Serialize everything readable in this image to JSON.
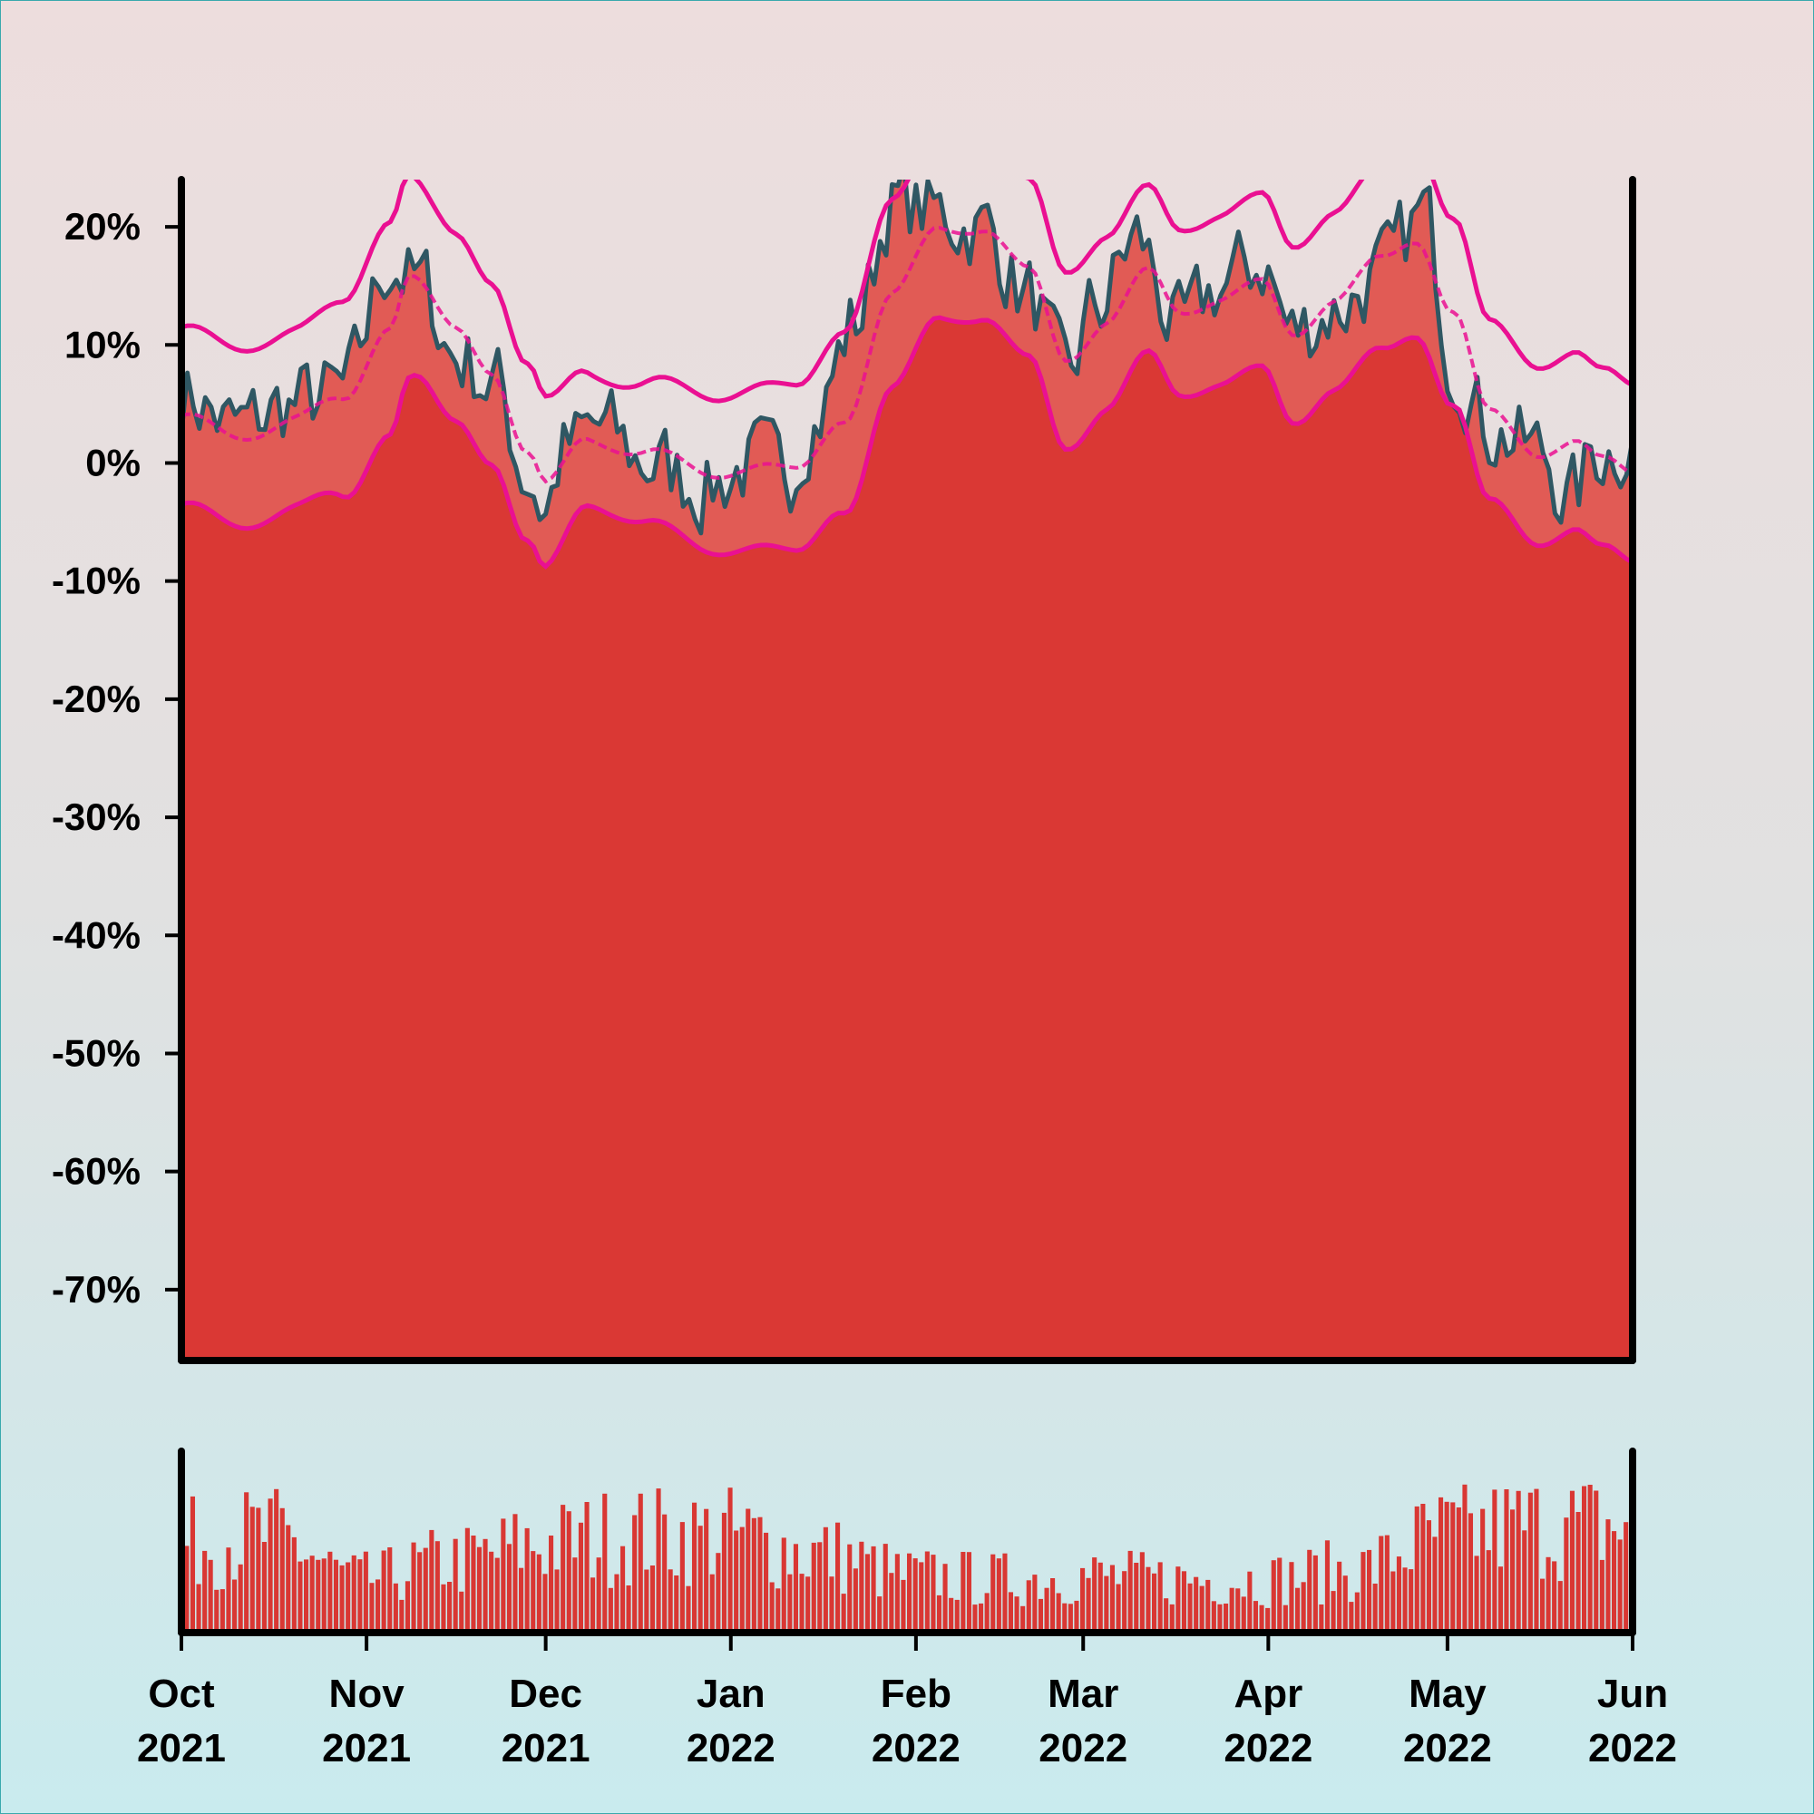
{
  "chart_data": {
    "type": "area",
    "subtype": "price-with-bollinger-bands-and-volume",
    "x_range": [
      "2021-10-01",
      "2022-06-01"
    ],
    "ylim": [
      -76,
      24
    ],
    "yticks": [
      20,
      10,
      0,
      -10,
      -20,
      -30,
      -40,
      -50,
      -60,
      -70
    ],
    "ytick_labels": [
      "20%",
      "10%",
      "0%",
      "-10%",
      "-20%",
      "-30%",
      "-40%",
      "-50%",
      "-60%",
      "-70%"
    ],
    "xticks": [
      {
        "date": "2021-10-01",
        "label": "Oct",
        "year": "2021"
      },
      {
        "date": "2021-11-01",
        "label": "Nov",
        "year": "2021"
      },
      {
        "date": "2021-12-01",
        "label": "Dec",
        "year": "2021"
      },
      {
        "date": "2022-01-01",
        "label": "Jan",
        "year": "2022"
      },
      {
        "date": "2022-02-01",
        "label": "Feb",
        "year": "2022"
      },
      {
        "date": "2022-03-01",
        "label": "Mar",
        "year": "2022"
      },
      {
        "date": "2022-04-01",
        "label": "Apr",
        "year": "2022"
      },
      {
        "date": "2022-05-01",
        "label": "May",
        "year": "2022"
      },
      {
        "date": "2022-06-01",
        "label": "Jun",
        "year": "2022"
      }
    ],
    "price_keypoints": [
      [
        "2021-10-01",
        6
      ],
      [
        "2021-10-10",
        3
      ],
      [
        "2021-10-20",
        5
      ],
      [
        "2021-10-28",
        6
      ],
      [
        "2021-11-05",
        17
      ],
      [
        "2021-11-10",
        15
      ],
      [
        "2021-11-16",
        9
      ],
      [
        "2021-11-22",
        7
      ],
      [
        "2021-11-28",
        -1
      ],
      [
        "2021-12-01",
        -4
      ],
      [
        "2021-12-04",
        1
      ],
      [
        "2021-12-10",
        3
      ],
      [
        "2021-12-18",
        0
      ],
      [
        "2021-12-28",
        -2
      ],
      [
        "2022-01-05",
        0
      ],
      [
        "2022-01-10",
        -1
      ],
      [
        "2022-01-15",
        4
      ],
      [
        "2022-01-22",
        12
      ],
      [
        "2022-01-28",
        22
      ],
      [
        "2022-02-05",
        21
      ],
      [
        "2022-02-12",
        20
      ],
      [
        "2022-02-20",
        14
      ],
      [
        "2022-02-26",
        7
      ],
      [
        "2022-03-03",
        13
      ],
      [
        "2022-03-10",
        19
      ],
      [
        "2022-03-17",
        11
      ],
      [
        "2022-03-24",
        15
      ],
      [
        "2022-03-31",
        17
      ],
      [
        "2022-04-05",
        11
      ],
      [
        "2022-04-12",
        13
      ],
      [
        "2022-04-20",
        16
      ],
      [
        "2022-04-27",
        21
      ],
      [
        "2022-05-02",
        9
      ],
      [
        "2022-05-08",
        3
      ],
      [
        "2022-05-16",
        1
      ],
      [
        "2022-05-22",
        -3
      ],
      [
        "2022-05-26",
        1
      ],
      [
        "2022-06-01",
        2
      ]
    ],
    "sma_keypoints": [
      [
        "2021-10-01",
        4
      ],
      [
        "2021-10-10",
        2
      ],
      [
        "2021-10-20",
        4
      ],
      [
        "2021-10-28",
        5
      ],
      [
        "2021-11-05",
        12
      ],
      [
        "2021-11-08",
        16
      ],
      [
        "2021-11-16",
        11
      ],
      [
        "2021-11-22",
        8
      ],
      [
        "2021-11-28",
        1
      ],
      [
        "2021-12-01",
        -2
      ],
      [
        "2021-12-08",
        2
      ],
      [
        "2021-12-18",
        1
      ],
      [
        "2021-12-28",
        -1
      ],
      [
        "2022-01-05",
        0
      ],
      [
        "2022-01-12",
        -1
      ],
      [
        "2022-01-20",
        4
      ],
      [
        "2022-01-28",
        14
      ],
      [
        "2022-02-05",
        20
      ],
      [
        "2022-02-12",
        20
      ],
      [
        "2022-02-20",
        16
      ],
      [
        "2022-02-26",
        9
      ],
      [
        "2022-03-05",
        12
      ],
      [
        "2022-03-12",
        16
      ],
      [
        "2022-03-17",
        13
      ],
      [
        "2022-03-24",
        14
      ],
      [
        "2022-03-31",
        15
      ],
      [
        "2022-04-05",
        11
      ],
      [
        "2022-04-12",
        14
      ],
      [
        "2022-04-20",
        17
      ],
      [
        "2022-04-26",
        19
      ],
      [
        "2022-05-02",
        13
      ],
      [
        "2022-05-08",
        4
      ],
      [
        "2022-05-16",
        1
      ],
      [
        "2022-05-22",
        2
      ],
      [
        "2022-05-27",
        0
      ],
      [
        "2022-06-01",
        -1
      ]
    ],
    "band_width_keypoints": [
      [
        "2021-10-01",
        7.5
      ],
      [
        "2021-10-20",
        7.5
      ],
      [
        "2021-11-05",
        9
      ],
      [
        "2021-11-12",
        8
      ],
      [
        "2021-11-28",
        7.5
      ],
      [
        "2021-12-10",
        5.5
      ],
      [
        "2021-12-28",
        6.5
      ],
      [
        "2022-01-12",
        7
      ],
      [
        "2022-01-25",
        8
      ],
      [
        "2022-02-10",
        7.5
      ],
      [
        "2022-02-25",
        7.5
      ],
      [
        "2022-03-15",
        7
      ],
      [
        "2022-04-10",
        7.5
      ],
      [
        "2022-04-28",
        8
      ],
      [
        "2022-05-12",
        7.5
      ],
      [
        "2022-06-01",
        7.5
      ]
    ],
    "volume_keypoints": [
      [
        "2021-10-01",
        0.5
      ],
      [
        "2021-10-15",
        0.55
      ],
      [
        "2021-11-01",
        0.3
      ],
      [
        "2021-11-15",
        0.4
      ],
      [
        "2021-12-01",
        0.5
      ],
      [
        "2021-12-15",
        0.55
      ],
      [
        "2022-01-01",
        0.55
      ],
      [
        "2022-01-15",
        0.45
      ],
      [
        "2022-02-01",
        0.32
      ],
      [
        "2022-02-15",
        0.3
      ],
      [
        "2022-03-01",
        0.32
      ],
      [
        "2022-03-15",
        0.3
      ],
      [
        "2022-04-01",
        0.3
      ],
      [
        "2022-04-15",
        0.35
      ],
      [
        "2022-05-01",
        0.55
      ],
      [
        "2022-05-15",
        0.6
      ],
      [
        "2022-06-01",
        0.6
      ]
    ],
    "grid": false,
    "legend": "none"
  },
  "colors": {
    "price_line": "#2f5763",
    "area_price": "#e15b55",
    "area_lower": "#da3834",
    "bands": "#ea1092",
    "volume": "#d93733",
    "axis": "#000000"
  }
}
